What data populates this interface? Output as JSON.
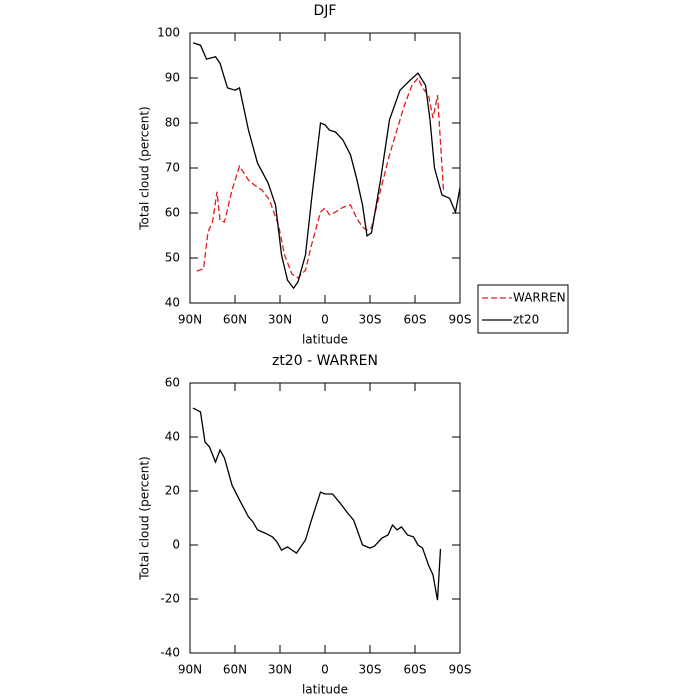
{
  "chart_data": [
    {
      "type": "line",
      "title": "DJF",
      "xlabel": "latitude",
      "ylabel": "Total cloud (percent)",
      "xlim": [
        90,
        -90
      ],
      "ylim": [
        40,
        100
      ],
      "xticks": [
        {
          "value": 90,
          "label": "90N"
        },
        {
          "value": 60,
          "label": "60N"
        },
        {
          "value": 30,
          "label": "30N"
        },
        0,
        {
          "value": -30,
          "label": "30S"
        },
        {
          "value": -60,
          "label": "60S"
        },
        {
          "value": -90,
          "label": "90S"
        }
      ],
      "yticks": [
        40,
        50,
        60,
        70,
        80,
        90,
        100
      ],
      "legend": "right",
      "series": [
        {
          "name": "WARREN",
          "color": "#e41a1c",
          "dashed": true,
          "x": [
            85.5,
            81,
            78,
            75,
            72,
            70,
            67,
            62,
            57,
            51,
            47,
            42,
            37,
            31,
            27,
            22,
            18,
            13,
            9,
            3,
            0,
            -3,
            -7,
            -12,
            -17,
            -21,
            -25,
            -28,
            -31,
            -37,
            -43,
            -49,
            -53,
            -58,
            -62,
            -65,
            -69,
            -72,
            -75,
            -79
          ],
          "values": [
            47.1,
            47.6,
            55.8,
            58,
            64.7,
            58.4,
            58,
            65.1,
            70.4,
            67.3,
            66.2,
            65.1,
            62.9,
            57.3,
            50.7,
            46.4,
            45.6,
            47.3,
            52.9,
            60.2,
            61.1,
            59.6,
            60.2,
            61.3,
            61.8,
            58.9,
            56.9,
            56.2,
            56.7,
            65.1,
            72.9,
            79.6,
            84,
            88.4,
            90,
            87.8,
            86.2,
            81.1,
            86.2,
            65.1
          ]
        },
        {
          "name": "zt20",
          "color": "#000000",
          "dashed": false,
          "x": [
            88,
            83,
            79,
            73,
            70,
            65,
            60,
            57,
            51,
            45,
            38,
            33,
            29,
            25,
            21,
            18,
            13,
            9,
            3,
            0,
            -3,
            -7,
            -12,
            -17,
            -21,
            -25,
            -28,
            -31,
            -37,
            -43,
            -50,
            -57,
            -62,
            -67,
            -70,
            -73,
            -78,
            -83,
            -87,
            -90
          ],
          "values": [
            97.8,
            97.3,
            94.2,
            94.7,
            93.3,
            87.8,
            87.3,
            87.8,
            78.4,
            71.1,
            66.7,
            61.8,
            50.7,
            45.1,
            43.3,
            44.7,
            50.7,
            62.9,
            80,
            79.6,
            78.4,
            78,
            76.2,
            72.9,
            67.8,
            61.8,
            54.9,
            55.6,
            67.3,
            80.7,
            87.3,
            89.6,
            91.1,
            88.4,
            80.7,
            70,
            64,
            63.3,
            60.2,
            65.6
          ]
        }
      ]
    },
    {
      "type": "line",
      "title": "zt20 - WARREN",
      "xlabel": "latitude",
      "ylabel": "Total cloud (percent)",
      "xlim": [
        90,
        -90
      ],
      "ylim": [
        -40,
        60
      ],
      "xticks": [
        {
          "value": 90,
          "label": "90N"
        },
        {
          "value": 60,
          "label": "60N"
        },
        {
          "value": 30,
          "label": "30N"
        },
        0,
        {
          "value": -30,
          "label": "30S"
        },
        {
          "value": -60,
          "label": "60S"
        },
        {
          "value": -90,
          "label": "90S"
        }
      ],
      "yticks": [
        -40,
        -20,
        0,
        20,
        40,
        60
      ],
      "series": [
        {
          "color": "#000000",
          "dashed": false,
          "x": [
            88,
            83,
            80,
            77,
            73,
            70,
            67,
            62,
            57,
            51,
            48,
            45,
            40,
            35,
            32,
            29,
            25,
            22,
            19,
            13,
            9,
            3,
            0,
            -5,
            -10,
            -15,
            -19,
            -21,
            -25,
            -30,
            -33,
            -38,
            -42,
            -45,
            -48,
            -51,
            -55,
            -59,
            -62,
            -65,
            -69,
            -72,
            -75,
            -77
          ],
          "values": [
            50.7,
            49.3,
            38.1,
            36.3,
            30.7,
            35.2,
            32.2,
            22.2,
            16.7,
            10.4,
            8.5,
            5.6,
            4.4,
            3,
            1.1,
            -1.9,
            -0.7,
            -1.9,
            -3,
            1.9,
            9.3,
            19.6,
            18.9,
            18.9,
            15.6,
            11.9,
            9.3,
            6.3,
            0,
            -1.1,
            -0.4,
            2.6,
            3.7,
            7.4,
            5.6,
            6.7,
            3.7,
            3,
            0,
            -1.1,
            -7.4,
            -11.1,
            -20.4,
            -1.5
          ]
        }
      ]
    }
  ]
}
